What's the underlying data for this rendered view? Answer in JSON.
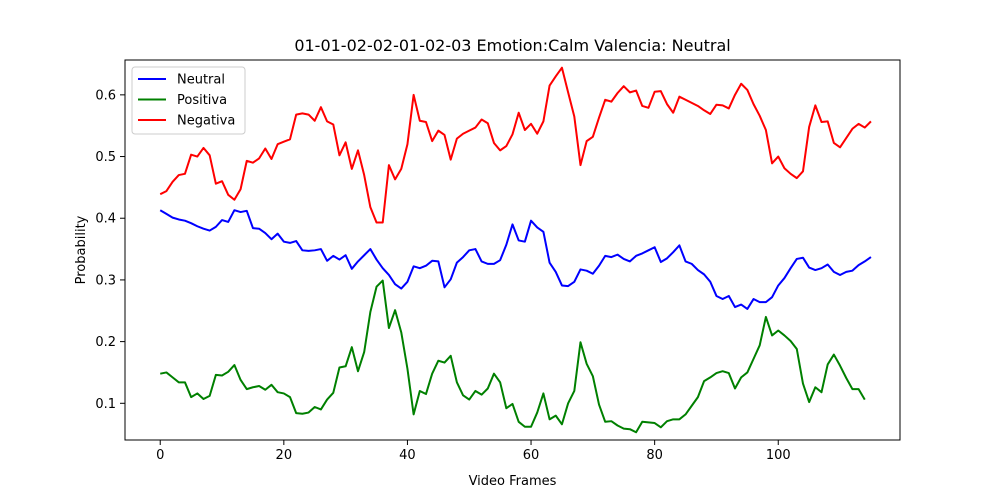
{
  "chart_data": {
    "type": "line",
    "title": "01-01-02-02-01-02-03 Emotion:Calm Valencia: Neutral",
    "xlabel": "Video Frames",
    "ylabel": "Probability",
    "xlim": [
      -5.7,
      119.7
    ],
    "ylim": [
      0.0405,
      0.6565
    ],
    "xticks": [
      0,
      20,
      40,
      60,
      80,
      100
    ],
    "yticks": [
      0.1,
      0.2,
      0.3,
      0.4,
      0.5,
      0.6
    ],
    "ytick_labels": [
      "0.1",
      "0.2",
      "0.3",
      "0.4",
      "0.5",
      "0.6"
    ],
    "legend_position": "upper-left",
    "grid": false,
    "series": [
      {
        "name": "Neutral",
        "color": "#0000ff",
        "values": [
          0.413,
          0.407,
          0.401,
          0.398,
          0.396,
          0.392,
          0.387,
          0.383,
          0.38,
          0.386,
          0.397,
          0.394,
          0.413,
          0.41,
          0.412,
          0.384,
          0.383,
          0.376,
          0.366,
          0.375,
          0.362,
          0.36,
          0.363,
          0.348,
          0.347,
          0.348,
          0.35,
          0.331,
          0.339,
          0.333,
          0.34,
          0.318,
          0.33,
          0.34,
          0.35,
          0.333,
          0.319,
          0.308,
          0.293,
          0.286,
          0.297,
          0.322,
          0.319,
          0.323,
          0.331,
          0.33,
          0.288,
          0.301,
          0.328,
          0.337,
          0.348,
          0.35,
          0.33,
          0.326,
          0.326,
          0.332,
          0.357,
          0.39,
          0.364,
          0.362,
          0.396,
          0.385,
          0.378,
          0.328,
          0.313,
          0.291,
          0.29,
          0.297,
          0.317,
          0.315,
          0.31,
          0.323,
          0.339,
          0.337,
          0.341,
          0.334,
          0.33,
          0.339,
          0.343,
          0.348,
          0.353,
          0.329,
          0.335,
          0.345,
          0.356,
          0.33,
          0.326,
          0.316,
          0.309,
          0.297,
          0.274,
          0.269,
          0.274,
          0.256,
          0.26,
          0.253,
          0.269,
          0.264,
          0.264,
          0.272,
          0.291,
          0.303,
          0.319,
          0.334,
          0.336,
          0.32,
          0.316,
          0.319,
          0.325,
          0.313,
          0.308,
          0.313,
          0.315,
          0.324,
          0.33,
          0.337
        ]
      },
      {
        "name": "Positiva",
        "color": "#008000",
        "values": [
          0.148,
          0.15,
          0.142,
          0.134,
          0.134,
          0.11,
          0.116,
          0.107,
          0.112,
          0.146,
          0.145,
          0.151,
          0.162,
          0.138,
          0.123,
          0.126,
          0.128,
          0.122,
          0.13,
          0.118,
          0.116,
          0.11,
          0.084,
          0.083,
          0.085,
          0.094,
          0.09,
          0.106,
          0.117,
          0.158,
          0.16,
          0.191,
          0.152,
          0.183,
          0.248,
          0.289,
          0.299,
          0.222,
          0.251,
          0.215,
          0.156,
          0.082,
          0.12,
          0.115,
          0.148,
          0.169,
          0.166,
          0.177,
          0.134,
          0.113,
          0.106,
          0.12,
          0.114,
          0.124,
          0.148,
          0.134,
          0.092,
          0.099,
          0.07,
          0.062,
          0.062,
          0.085,
          0.116,
          0.074,
          0.08,
          0.066,
          0.1,
          0.12,
          0.199,
          0.164,
          0.144,
          0.098,
          0.07,
          0.071,
          0.064,
          0.059,
          0.058,
          0.053,
          0.07,
          0.069,
          0.068,
          0.061,
          0.071,
          0.074,
          0.074,
          0.082,
          0.096,
          0.11,
          0.136,
          0.142,
          0.149,
          0.152,
          0.149,
          0.124,
          0.142,
          0.15,
          0.172,
          0.194,
          0.24,
          0.21,
          0.218,
          0.21,
          0.201,
          0.188,
          0.132,
          0.102,
          0.126,
          0.118,
          0.163,
          0.179,
          0.161,
          0.141,
          0.123,
          0.123,
          0.106
        ]
      },
      {
        "name": "Negativa",
        "color": "#ff0000",
        "values": [
          0.439,
          0.444,
          0.459,
          0.47,
          0.472,
          0.503,
          0.5,
          0.514,
          0.502,
          0.456,
          0.46,
          0.438,
          0.43,
          0.447,
          0.493,
          0.49,
          0.497,
          0.513,
          0.496,
          0.52,
          0.524,
          0.528,
          0.568,
          0.57,
          0.568,
          0.558,
          0.58,
          0.557,
          0.552,
          0.502,
          0.523,
          0.48,
          0.51,
          0.47,
          0.418,
          0.393,
          0.393,
          0.486,
          0.463,
          0.48,
          0.52,
          0.6,
          0.558,
          0.556,
          0.525,
          0.542,
          0.535,
          0.495,
          0.529,
          0.537,
          0.542,
          0.547,
          0.56,
          0.554,
          0.522,
          0.51,
          0.517,
          0.536,
          0.571,
          0.543,
          0.553,
          0.537,
          0.557,
          0.615,
          0.63,
          0.644,
          0.604,
          0.565,
          0.486,
          0.525,
          0.532,
          0.563,
          0.592,
          0.589,
          0.603,
          0.614,
          0.604,
          0.607,
          0.582,
          0.579,
          0.605,
          0.606,
          0.585,
          0.571,
          0.597,
          0.592,
          0.587,
          0.582,
          0.575,
          0.569,
          0.584,
          0.583,
          0.578,
          0.6,
          0.618,
          0.608,
          0.585,
          0.566,
          0.543,
          0.489,
          0.5,
          0.481,
          0.472,
          0.465,
          0.476,
          0.548,
          0.583,
          0.556,
          0.557,
          0.522,
          0.515,
          0.53,
          0.545,
          0.553,
          0.547,
          0.557
        ]
      }
    ]
  }
}
